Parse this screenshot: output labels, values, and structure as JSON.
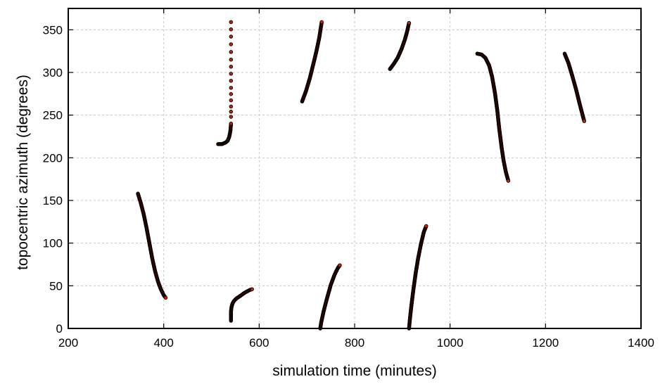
{
  "chart_data": {
    "type": "scatter",
    "title": "",
    "xlabel": "simulation time (minutes)",
    "ylabel": "topocentric azimuth (degrees)",
    "xlim": [
      200,
      1400
    ],
    "ylim": [
      0,
      375
    ],
    "xticks": [
      200,
      400,
      600,
      800,
      1000,
      1200,
      1400
    ],
    "yticks": [
      0,
      50,
      100,
      150,
      200,
      250,
      300,
      350
    ],
    "grid": true,
    "legend": "none",
    "marker_fill": "#cc2200",
    "marker_edge": "#000000",
    "segments": [
      {
        "points": [
          [
            346,
            158
          ],
          [
            352,
            147
          ],
          [
            358,
            134
          ],
          [
            364,
            118
          ],
          [
            370,
            100
          ],
          [
            376,
            82
          ],
          [
            382,
            67
          ],
          [
            388,
            55
          ],
          [
            394,
            46
          ],
          [
            400,
            39
          ],
          [
            404,
            36
          ]
        ]
      },
      {
        "points": [
          [
            514,
            216
          ],
          [
            522,
            216
          ],
          [
            530,
            218
          ],
          [
            534,
            220
          ],
          [
            537,
            224
          ],
          [
            539,
            229
          ],
          [
            540,
            233
          ],
          [
            541,
            240
          ],
          [
            541,
            248
          ],
          [
            541,
            260
          ],
          [
            541,
            282
          ],
          [
            541,
            315
          ],
          [
            541,
            342
          ],
          [
            541,
            359
          ]
        ]
      },
      {
        "points": [
          [
            541,
            9
          ],
          [
            541,
            15
          ],
          [
            541,
            20
          ],
          [
            542,
            25
          ],
          [
            544,
            29
          ],
          [
            547,
            32
          ],
          [
            552,
            35
          ],
          [
            560,
            38
          ],
          [
            570,
            42
          ],
          [
            580,
            45
          ],
          [
            585,
            46
          ]
        ]
      },
      {
        "points": [
          [
            690,
            266
          ],
          [
            698,
            278
          ],
          [
            706,
            293
          ],
          [
            714,
            311
          ],
          [
            720,
            325
          ],
          [
            726,
            341
          ],
          [
            731,
            359
          ]
        ]
      },
      {
        "points": [
          [
            728,
            0
          ],
          [
            730,
            7
          ],
          [
            735,
            20
          ],
          [
            742,
            35
          ],
          [
            750,
            51
          ],
          [
            758,
            63
          ],
          [
            765,
            71
          ],
          [
            769,
            74
          ]
        ]
      },
      {
        "points": [
          [
            874,
            304
          ],
          [
            882,
            310
          ],
          [
            890,
            317
          ],
          [
            898,
            327
          ],
          [
            905,
            338
          ],
          [
            910,
            348
          ],
          [
            914,
            358
          ]
        ]
      },
      {
        "points": [
          [
            914,
            0
          ],
          [
            916,
            12
          ],
          [
            919,
            27
          ],
          [
            923,
            45
          ],
          [
            928,
            65
          ],
          [
            933,
            82
          ],
          [
            939,
            99
          ],
          [
            945,
            113
          ],
          [
            950,
            120
          ]
        ]
      },
      {
        "points": [
          [
            1057,
            322
          ],
          [
            1066,
            321
          ],
          [
            1074,
            317
          ],
          [
            1082,
            308
          ],
          [
            1088,
            295
          ],
          [
            1094,
            276
          ],
          [
            1099,
            255
          ],
          [
            1103,
            234
          ],
          [
            1108,
            212
          ],
          [
            1112,
            197
          ],
          [
            1117,
            183
          ],
          [
            1122,
            173
          ]
        ]
      },
      {
        "points": [
          [
            1240,
            322
          ],
          [
            1248,
            311
          ],
          [
            1256,
            296
          ],
          [
            1264,
            280
          ],
          [
            1272,
            262
          ],
          [
            1281,
            243
          ]
        ]
      }
    ]
  }
}
